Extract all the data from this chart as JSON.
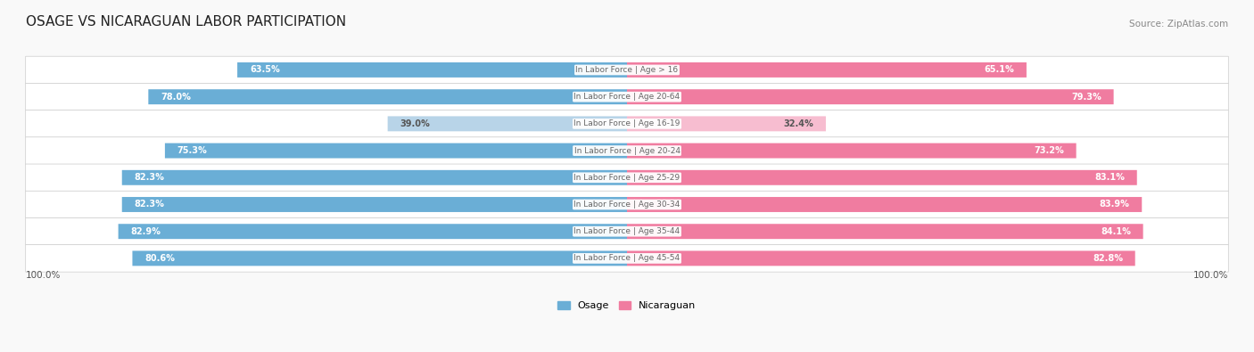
{
  "title": "OSAGE VS NICARAGUAN LABOR PARTICIPATION",
  "source": "Source: ZipAtlas.com",
  "categories": [
    "In Labor Force | Age > 16",
    "In Labor Force | Age 20-64",
    "In Labor Force | Age 16-19",
    "In Labor Force | Age 20-24",
    "In Labor Force | Age 25-29",
    "In Labor Force | Age 30-34",
    "In Labor Force | Age 35-44",
    "In Labor Force | Age 45-54"
  ],
  "osage_values": [
    63.5,
    78.0,
    39.0,
    75.3,
    82.3,
    82.3,
    82.9,
    80.6
  ],
  "nicaraguan_values": [
    65.1,
    79.3,
    32.4,
    73.2,
    83.1,
    83.9,
    84.1,
    82.8
  ],
  "osage_color": "#6aaed6",
  "osage_light_color": "#b8d4e8",
  "nicaraguan_color": "#f07ca0",
  "nicaraguan_light_color": "#f7bdd0",
  "label_color_dark": "#555555",
  "label_color_white": "#ffffff",
  "center_label_color": "#666666",
  "figsize": [
    14.06,
    3.95
  ],
  "dpi": 100
}
